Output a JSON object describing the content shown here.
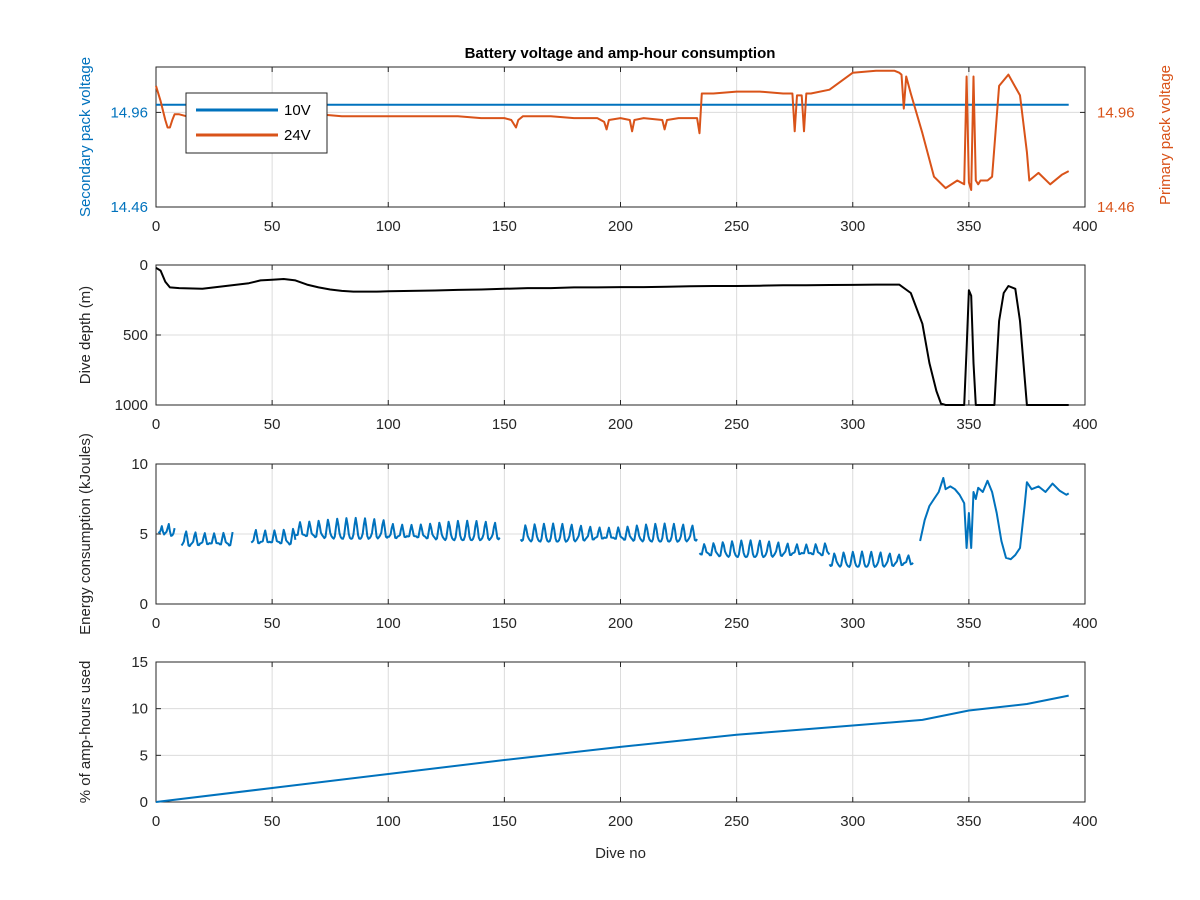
{
  "figure": {
    "title": "Battery voltage and amp-hour consumption",
    "background": "#ffffff"
  },
  "colors": {
    "series_10v": "#0072BD",
    "series_24v": "#D95319",
    "depth_line": "#000000",
    "energy_line": "#0072BD",
    "amphours_line": "#0072BD",
    "grid": "#dcdcdc",
    "axis": "#262626"
  },
  "chart_data": [
    {
      "id": "voltage",
      "type": "line",
      "title": "Battery voltage and amp-hour consumption",
      "xlabel": "",
      "ylabel_left": "Secondary pack voltage",
      "ylabel_right": "Primary pack voltage",
      "xlim": [
        0,
        400
      ],
      "ylim_left": [
        14.46,
        15.2
      ],
      "ylim_right": [
        14.46,
        15.2
      ],
      "xticks": [
        0,
        50,
        100,
        150,
        200,
        250,
        300,
        350,
        400
      ],
      "yticks_left": [
        14.46,
        14.96
      ],
      "yticks_right": [
        14.46,
        14.96
      ],
      "ytick_labels_left": [
        "14.46",
        "14.96"
      ],
      "ytick_labels_right": [
        "14.46",
        "14.96"
      ],
      "grid": true,
      "legend": {
        "placement": "top-left",
        "entries": [
          "10V",
          "24V"
        ]
      },
      "series": [
        {
          "name": "10V",
          "axis": "left",
          "color_key": "series_10v",
          "x": [
            0,
            393
          ],
          "y": [
            15.0,
            15.0
          ]
        },
        {
          "name": "24V",
          "axis": "right",
          "color_key": "series_24v",
          "x": [
            0,
            2,
            4,
            5,
            6,
            7,
            8,
            10,
            13,
            20,
            30,
            40,
            50,
            60,
            70,
            80,
            90,
            100,
            110,
            120,
            130,
            140,
            150,
            153,
            155,
            156,
            158,
            160,
            170,
            180,
            190,
            193,
            194,
            195,
            200,
            204,
            205,
            206,
            210,
            218,
            219,
            220,
            225,
            230,
            233,
            234,
            235,
            236,
            240,
            250,
            260,
            270,
            274,
            275,
            276,
            278,
            279,
            280,
            282,
            290,
            300,
            310,
            318,
            320,
            321,
            322,
            323,
            325,
            330,
            335,
            340,
            345,
            348,
            349,
            350,
            351,
            352,
            353,
            354,
            355,
            358,
            360,
            363,
            367,
            372,
            375,
            376,
            380,
            385,
            390,
            393
          ],
          "y": [
            15.1,
            15.02,
            14.92,
            14.88,
            14.88,
            14.92,
            14.95,
            14.95,
            14.94,
            14.94,
            14.93,
            14.94,
            14.94,
            14.93,
            14.95,
            14.94,
            14.94,
            14.94,
            14.94,
            14.94,
            14.94,
            14.93,
            14.93,
            14.92,
            14.88,
            14.92,
            14.94,
            14.94,
            14.94,
            14.93,
            14.93,
            14.91,
            14.87,
            14.92,
            14.93,
            14.92,
            14.86,
            14.92,
            14.93,
            14.92,
            14.87,
            14.92,
            14.93,
            14.93,
            14.93,
            14.85,
            15.06,
            15.06,
            15.06,
            15.07,
            15.07,
            15.06,
            15.06,
            14.86,
            15.05,
            15.05,
            14.86,
            15.06,
            15.06,
            15.08,
            15.17,
            15.18,
            15.18,
            15.17,
            15.16,
            14.98,
            15.15,
            15.06,
            14.85,
            14.62,
            14.56,
            14.6,
            14.58,
            15.15,
            14.59,
            14.55,
            15.15,
            14.6,
            14.58,
            14.6,
            14.6,
            14.62,
            15.1,
            15.16,
            15.05,
            14.75,
            14.6,
            14.64,
            14.58,
            14.63,
            14.65
          ]
        }
      ]
    },
    {
      "id": "depth",
      "type": "line",
      "title": "",
      "xlabel": "",
      "ylabel": "Dive depth (m)",
      "xlim": [
        0,
        400
      ],
      "ylim": [
        0,
        1000
      ],
      "y_reversed": true,
      "xticks": [
        0,
        50,
        100,
        150,
        200,
        250,
        300,
        350,
        400
      ],
      "yticks": [
        0,
        500,
        1000
      ],
      "ytick_labels": [
        "0",
        "500",
        "1000"
      ],
      "grid": true,
      "series": [
        {
          "color_key": "depth_line",
          "x": [
            0,
            2,
            4,
            6,
            10,
            20,
            30,
            40,
            45,
            50,
            55,
            60,
            65,
            70,
            75,
            80,
            85,
            90,
            95,
            100,
            110,
            120,
            130,
            140,
            150,
            160,
            170,
            180,
            190,
            200,
            210,
            220,
            230,
            240,
            250,
            260,
            270,
            280,
            290,
            300,
            310,
            320,
            325,
            330,
            333,
            336,
            338,
            340,
            343,
            345,
            347,
            348,
            349,
            350,
            351,
            352,
            353,
            354,
            356,
            358,
            360,
            361,
            362,
            363,
            365,
            367,
            370,
            372,
            374,
            375,
            376,
            378,
            380,
            385,
            390,
            393
          ],
          "y": [
            20,
            40,
            120,
            160,
            165,
            170,
            150,
            130,
            110,
            105,
            100,
            110,
            140,
            160,
            175,
            185,
            190,
            190,
            190,
            188,
            185,
            182,
            178,
            175,
            170,
            165,
            165,
            160,
            160,
            158,
            158,
            155,
            152,
            150,
            150,
            148,
            145,
            145,
            143,
            142,
            140,
            140,
            200,
            420,
            700,
            900,
            990,
            1000,
            1000,
            1000,
            1000,
            1000,
            600,
            180,
            220,
            700,
            1000,
            1000,
            1000,
            1000,
            1000,
            1000,
            700,
            400,
            200,
            150,
            170,
            400,
            800,
            1000,
            1000,
            1000,
            1000,
            1000,
            1000,
            1000
          ]
        }
      ]
    },
    {
      "id": "energy",
      "type": "line",
      "title": "",
      "xlabel": "",
      "ylabel": "Energy consumption (kJoules)",
      "xlim": [
        0,
        400
      ],
      "ylim": [
        0,
        10
      ],
      "xticks": [
        0,
        50,
        100,
        150,
        200,
        250,
        300,
        350,
        400
      ],
      "yticks": [
        0,
        5,
        10
      ],
      "ytick_labels": [
        "0",
        "5",
        "10"
      ],
      "grid": true,
      "series": [
        {
          "color_key": "energy_line",
          "segments": [
            {
              "x_start": 1,
              "x_end": 8,
              "base": 5.0,
              "amp": 0.7,
              "period": 3
            },
            {
              "x_start": 11,
              "x_end": 33,
              "base": 4.2,
              "amp": 1.0,
              "period": 4
            },
            {
              "x_start": 41,
              "x_end": 60,
              "base": 4.3,
              "amp": 1.1,
              "period": 4
            },
            {
              "x_start": 60,
              "x_end": 100,
              "base": 4.8,
              "amp": 1.2,
              "period": 4
            },
            {
              "x_start": 100,
              "x_end": 148,
              "base": 4.7,
              "amp": 1.1,
              "period": 4
            },
            {
              "x_start": 157,
              "x_end": 233,
              "base": 4.6,
              "amp": 1.0,
              "period": 4
            },
            {
              "x_start": 234,
              "x_end": 290,
              "base": 3.5,
              "amp": 0.9,
              "period": 4
            },
            {
              "x_start": 290,
              "x_end": 326,
              "base": 2.8,
              "amp": 0.8,
              "period": 4
            }
          ],
          "points_x": [
            329,
            331,
            333,
            335,
            337,
            338,
            339,
            340,
            342,
            344,
            346,
            348,
            349,
            350,
            351,
            352,
            353,
            354,
            356,
            358,
            360,
            362,
            364,
            366,
            368,
            370,
            372,
            374,
            375,
            377,
            380,
            383,
            386,
            389,
            392,
            393
          ],
          "points_y": [
            4.5,
            6.0,
            7.0,
            7.5,
            8.0,
            8.5,
            9.0,
            8.2,
            8.4,
            8.2,
            7.8,
            7.2,
            4.0,
            6.5,
            4.0,
            8.0,
            7.5,
            8.3,
            8.0,
            8.8,
            8.0,
            6.5,
            4.5,
            3.3,
            3.2,
            3.5,
            4.0,
            7.0,
            8.7,
            8.2,
            8.4,
            8.0,
            8.6,
            8.1,
            7.8,
            7.9
          ]
        }
      ]
    },
    {
      "id": "amphours",
      "type": "line",
      "title": "",
      "xlabel": "Dive no",
      "ylabel": "% of amp-hours used",
      "xlim": [
        0,
        400
      ],
      "ylim": [
        0,
        15
      ],
      "xticks": [
        0,
        50,
        100,
        150,
        200,
        250,
        300,
        350,
        400
      ],
      "yticks": [
        0,
        5,
        10,
        15
      ],
      "ytick_labels": [
        "0",
        "5",
        "10",
        "15"
      ],
      "grid": true,
      "series": [
        {
          "color_key": "amphours_line",
          "x": [
            0,
            50,
            100,
            150,
            200,
            250,
            300,
            330,
            350,
            375,
            393
          ],
          "y": [
            0,
            1.5,
            3.0,
            4.5,
            5.9,
            7.2,
            8.2,
            8.8,
            9.8,
            10.5,
            11.4
          ]
        }
      ]
    }
  ]
}
